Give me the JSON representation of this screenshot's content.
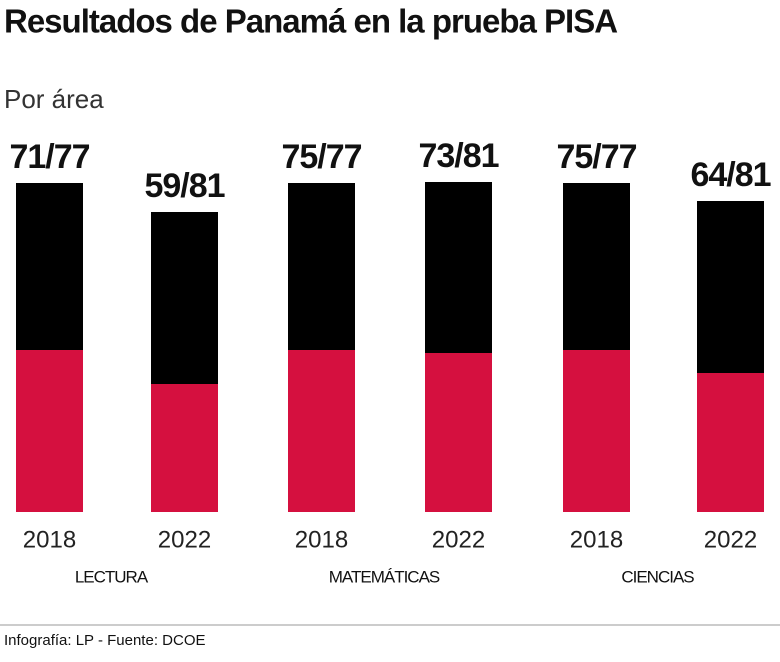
{
  "title": "Resultados de Panamá en la prueba  PISA",
  "subtitle": "Por área",
  "groups": [
    {
      "area": "LECTURA",
      "bars": [
        {
          "year": "2018",
          "label": "71/77"
        },
        {
          "year": "2022",
          "label": "59/81"
        }
      ]
    },
    {
      "area": "MATEMÁTICAS",
      "bars": [
        {
          "year": "2018",
          "label": "75/77"
        },
        {
          "year": "2022",
          "label": "73/81"
        }
      ]
    },
    {
      "area": "CIENCIAS",
      "bars": [
        {
          "year": "2018",
          "label": "75/77"
        },
        {
          "year": "2022",
          "label": "64/81"
        }
      ]
    }
  ],
  "footer": "Infografía: LP - Fuente: DCOE"
}
